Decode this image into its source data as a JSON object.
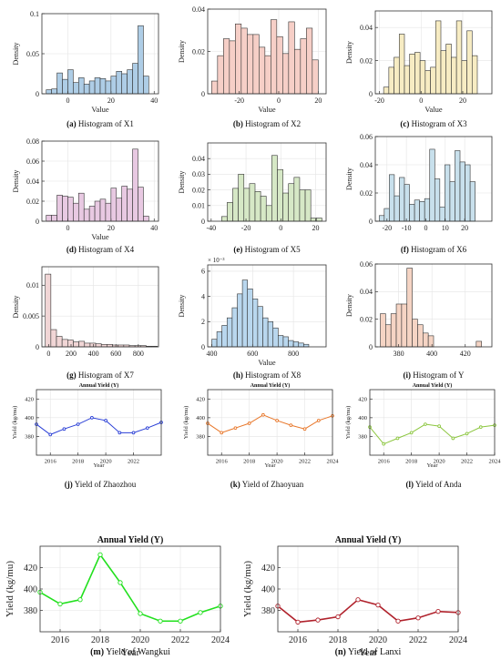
{
  "figure": {
    "panels": [
      {
        "id": "a",
        "caption_letter": "(a)",
        "caption_text": "Histogram of X1",
        "ylabel": "Density",
        "xlabel": "Value",
        "color": "#aecde6",
        "chart_type": "bar"
      },
      {
        "id": "b",
        "caption_letter": "(b)",
        "caption_text": "Histogram of X2",
        "ylabel": "Density",
        "xlabel": "Value",
        "color": "#f6cfc7",
        "chart_type": "bar"
      },
      {
        "id": "c",
        "caption_letter": "(c)",
        "caption_text": "Histogram of X3",
        "ylabel": "Density",
        "xlabel": "Value",
        "color": "#f7ecc3",
        "chart_type": "bar"
      },
      {
        "id": "d",
        "caption_letter": "(d)",
        "caption_text": "Histogram of X4",
        "ylabel": "Density",
        "xlabel": "Value",
        "color": "#e8c9e2",
        "chart_type": "bar"
      },
      {
        "id": "e",
        "caption_letter": "(e)",
        "caption_text": "Histogram of X5",
        "ylabel": "Density",
        "xlabel": "",
        "color": "#d6e8c6",
        "chart_type": "bar"
      },
      {
        "id": "f",
        "caption_letter": "(f)",
        "caption_text": "Histogram of X6",
        "ylabel": "Density",
        "xlabel": "",
        "color": "#c8e0ec",
        "chart_type": "bar"
      },
      {
        "id": "g",
        "caption_letter": "(g)",
        "caption_text": "Histogram of X7",
        "ylabel": "Density",
        "xlabel": "",
        "color": "#f1d6d6",
        "chart_type": "bar"
      },
      {
        "id": "h",
        "caption_letter": "(h)",
        "caption_text": "Histogram of X8",
        "ylabel": "Density",
        "xlabel": "Value",
        "color": "#b9d7ee",
        "chart_type": "bar",
        "exponent_label": "× 10⁻³"
      },
      {
        "id": "i",
        "caption_letter": "(i)",
        "caption_text": "Histogram of Y",
        "ylabel": "Density",
        "xlabel": "",
        "color": "#f5d4c4",
        "chart_type": "bar"
      },
      {
        "id": "j",
        "caption_letter": "(j)",
        "caption_text": "Yield of Zhaozhou",
        "title": "Annual Yield (Y)",
        "ylabel": "Yield (kg/mu)",
        "xlabel": "Year",
        "color": "#2a3fd6",
        "chart_type": "line"
      },
      {
        "id": "k",
        "caption_letter": "(k)",
        "caption_text": "Yield of Zhaoyuan",
        "title": "Annual Yield (Y)",
        "ylabel": "Yield (kg/mu)",
        "xlabel": "Year",
        "color": "#e8772a",
        "chart_type": "line"
      },
      {
        "id": "l",
        "caption_letter": "(l)",
        "caption_text": "Yield of Anda",
        "title": "Annual Yield (Y)",
        "ylabel": "Yield (kg/mu)",
        "xlabel": "Year",
        "color": "#8cc63f",
        "chart_type": "line"
      },
      {
        "id": "m",
        "caption_letter": "(m)",
        "caption_text": "Yield of Wangkui",
        "title": "Annual Yield (Y)",
        "ylabel": "Yield (kg/mu)",
        "xlabel": "Year",
        "color": "#22e01e",
        "chart_type": "line"
      },
      {
        "id": "n",
        "caption_letter": "(n)",
        "caption_text": "Yield of Lanxi",
        "title": "Annual Yield (Y)",
        "ylabel": "Yield (kg/mu)",
        "xlabel": "Year",
        "color": "#b0222c",
        "chart_type": "line"
      }
    ]
  },
  "chart_data": [
    {
      "type": "bar",
      "panel": "a",
      "xlim": [
        -12,
        42
      ],
      "ylim": [
        0,
        0.1
      ],
      "xticks": [
        0,
        20,
        40
      ],
      "yticks": [
        0,
        0.05,
        0.1
      ],
      "ytick_labels": [
        "0",
        "0.05",
        "0.1"
      ],
      "bin_start": -10,
      "bin_width": 2.5,
      "values": [
        0.005,
        0.006,
        0.026,
        0.018,
        0.03,
        0.014,
        0.02,
        0.012,
        0.016,
        0.02,
        0.019,
        0.016,
        0.022,
        0.028,
        0.025,
        0.03,
        0.038,
        0.085,
        0.022,
        0.0
      ]
    },
    {
      "type": "bar",
      "panel": "b",
      "xlim": [
        -36,
        24
      ],
      "ylim": [
        0,
        0.04
      ],
      "xticks": [
        -20,
        0,
        20
      ],
      "yticks": [
        0,
        0.02,
        0.04
      ],
      "ytick_labels": [
        "0",
        "0.02",
        "0.04"
      ],
      "bin_start": -34,
      "bin_width": 3,
      "values": [
        0.006,
        0.018,
        0.026,
        0.025,
        0.033,
        0.031,
        0.028,
        0.028,
        0.022,
        0.018,
        0.035,
        0.027,
        0.019,
        0.034,
        0.021,
        0.026,
        0.031,
        0.016,
        0.0,
        0.0
      ]
    },
    {
      "type": "bar",
      "panel": "c",
      "xlim": [
        -22,
        34
      ],
      "ylim": [
        0,
        0.05
      ],
      "xticks": [
        -20,
        0,
        20
      ],
      "yticks": [
        0,
        0.02,
        0.04
      ],
      "ytick_labels": [
        "0",
        "0.02",
        "0.04"
      ],
      "bin_start": -18,
      "bin_width": 2.5,
      "values": [
        0.004,
        0.016,
        0.022,
        0.036,
        0.017,
        0.024,
        0.025,
        0.02,
        0.014,
        0.016,
        0.044,
        0.026,
        0.03,
        0.022,
        0.044,
        0.02,
        0.038,
        0.023,
        0.0,
        0.0
      ]
    },
    {
      "type": "bar",
      "panel": "d",
      "xlim": [
        -12,
        42
      ],
      "ylim": [
        0,
        0.08
      ],
      "xticks": [
        0,
        20,
        40
      ],
      "yticks": [
        0,
        0.02,
        0.04,
        0.06,
        0.08
      ],
      "ytick_labels": [
        "0",
        "0.02",
        "0.04",
        "0.06",
        "0.08"
      ],
      "bin_start": -10,
      "bin_width": 2.5,
      "values": [
        0.006,
        0.006,
        0.026,
        0.025,
        0.024,
        0.018,
        0.028,
        0.012,
        0.015,
        0.02,
        0.022,
        0.018,
        0.033,
        0.023,
        0.035,
        0.032,
        0.072,
        0.034,
        0.005,
        0.0
      ]
    },
    {
      "type": "bar",
      "panel": "e",
      "xlim": [
        -42,
        26
      ],
      "ylim": [
        0,
        0.05
      ],
      "xticks": [
        -40,
        -20,
        0,
        20
      ],
      "yticks": [
        0,
        0.01,
        0.02,
        0.03,
        0.04
      ],
      "ytick_labels": [
        "0",
        "0.01",
        "0.02",
        "0.03",
        "0.04"
      ],
      "bin_start": -34,
      "bin_width": 3.2,
      "values": [
        0.003,
        0.012,
        0.021,
        0.03,
        0.021,
        0.024,
        0.019,
        0.016,
        0.01,
        0.042,
        0.033,
        0.018,
        0.024,
        0.028,
        0.02,
        0.02,
        0.002,
        0.002,
        0.0,
        0.0
      ]
    },
    {
      "type": "bar",
      "panel": "f",
      "xlim": [
        -26,
        34
      ],
      "ylim": [
        0,
        0.06
      ],
      "xticks": [
        -20,
        -10,
        0,
        10,
        20
      ],
      "yticks": [
        0,
        0.02,
        0.04,
        0.06
      ],
      "ytick_labels": [
        "0",
        "0.02",
        "0.04",
        "0.06"
      ],
      "bin_start": -24,
      "bin_width": 2.6,
      "values": [
        0.004,
        0.009,
        0.033,
        0.018,
        0.031,
        0.026,
        0.012,
        0.015,
        0.014,
        0.016,
        0.051,
        0.03,
        0.01,
        0.04,
        0.028,
        0.05,
        0.042,
        0.04,
        0.028,
        0.0
      ]
    },
    {
      "type": "bar",
      "panel": "g",
      "xlim": [
        -60,
        980
      ],
      "ylim": [
        0,
        0.013
      ],
      "xticks": [
        0,
        200,
        400,
        600,
        800
      ],
      "yticks": [
        0,
        0.005,
        0.01
      ],
      "ytick_labels": [
        "0",
        "0.005",
        "0.01"
      ],
      "bin_start": -30,
      "bin_width": 50,
      "values": [
        0.0118,
        0.0028,
        0.0017,
        0.0012,
        0.0011,
        0.0008,
        0.0009,
        0.0006,
        0.0006,
        0.0005,
        0.0004,
        0.0004,
        0.0003,
        0.0003,
        0.0003,
        0.0002,
        0.0002,
        0.0002,
        0.0001,
        0.0001
      ]
    },
    {
      "type": "bar",
      "panel": "h",
      "xlim": [
        380,
        960
      ],
      "ylim": [
        0,
        6.5
      ],
      "xticks": [
        400,
        600,
        800
      ],
      "yticks": [
        0,
        2,
        4,
        6
      ],
      "ytick_labels": [
        "0",
        "2",
        "4",
        "6"
      ],
      "bin_start": 400,
      "bin_width": 25,
      "values": [
        0.6,
        1.2,
        1.7,
        2.3,
        3.1,
        4.2,
        5.3,
        4.6,
        3.8,
        3.2,
        2.3,
        2.0,
        1.5,
        0.9,
        0.8,
        0.5,
        0.4,
        0.3,
        0.2,
        0.0
      ]
    },
    {
      "type": "bar",
      "panel": "i",
      "xlim": [
        366,
        436
      ],
      "ylim": [
        0,
        0.06
      ],
      "xticks": [
        380,
        400,
        420
      ],
      "yticks": [
        0,
        0.02,
        0.04,
        0.06
      ],
      "ytick_labels": [
        "0",
        "0.02",
        "0.04",
        "0.06"
      ],
      "bin_start": 369,
      "bin_width": 3.2,
      "values": [
        0.024,
        0.016,
        0.024,
        0.031,
        0.031,
        0.057,
        0.02,
        0.016,
        0.01,
        0.008,
        0.0,
        0.0,
        0.0,
        0.0,
        0.0,
        0.0,
        0.0,
        0.0,
        0.004,
        0.0
      ]
    },
    {
      "type": "line",
      "panel": "j",
      "x": [
        2015,
        2016,
        2017,
        2018,
        2019,
        2020,
        2021,
        2022,
        2023,
        2024
      ],
      "y": [
        393,
        382,
        388,
        393,
        400,
        397,
        384,
        384,
        389,
        395
      ],
      "xlim": [
        2015,
        2024
      ],
      "ylim": [
        360,
        430
      ],
      "xticks": [
        2016,
        2018,
        2020,
        2022
      ],
      "yticks": [
        380,
        400,
        420
      ]
    },
    {
      "type": "line",
      "panel": "k",
      "x": [
        2015,
        2016,
        2017,
        2018,
        2019,
        2020,
        2021,
        2022,
        2023,
        2024
      ],
      "y": [
        394,
        384,
        389,
        394,
        403,
        397,
        392,
        388,
        397,
        402
      ],
      "xlim": [
        2015,
        2024
      ],
      "ylim": [
        360,
        430
      ],
      "xticks": [
        2016,
        2018,
        2020,
        2022,
        2024
      ],
      "yticks": [
        380,
        400,
        420
      ]
    },
    {
      "type": "line",
      "panel": "l",
      "x": [
        2015,
        2016,
        2017,
        2018,
        2019,
        2020,
        2021,
        2022,
        2023,
        2024
      ],
      "y": [
        390,
        372,
        378,
        384,
        393,
        391,
        378,
        383,
        390,
        392
      ],
      "xlim": [
        2015,
        2024
      ],
      "ylim": [
        360,
        430
      ],
      "xticks": [
        2016,
        2018,
        2020,
        2022,
        2024
      ],
      "yticks": [
        380,
        400,
        420
      ]
    },
    {
      "type": "line",
      "panel": "m",
      "x": [
        2015,
        2016,
        2017,
        2018,
        2019,
        2020,
        2021,
        2022,
        2023,
        2024
      ],
      "y": [
        397,
        386,
        390,
        432,
        406,
        377,
        370,
        370,
        378,
        384
      ],
      "xlim": [
        2015,
        2024
      ],
      "ylim": [
        360,
        440
      ],
      "xticks": [
        2016,
        2018,
        2020,
        2022,
        2024
      ],
      "yticks": [
        380,
        400,
        420
      ]
    },
    {
      "type": "line",
      "panel": "n",
      "x": [
        2015,
        2016,
        2017,
        2018,
        2019,
        2020,
        2021,
        2022,
        2023,
        2024
      ],
      "y": [
        384,
        369,
        371,
        374,
        390,
        385,
        370,
        373,
        379,
        378
      ],
      "xlim": [
        2015,
        2024
      ],
      "ylim": [
        360,
        440
      ],
      "xticks": [
        2016,
        2018,
        2020,
        2022,
        2024
      ],
      "yticks": [
        380,
        400,
        420
      ]
    }
  ]
}
